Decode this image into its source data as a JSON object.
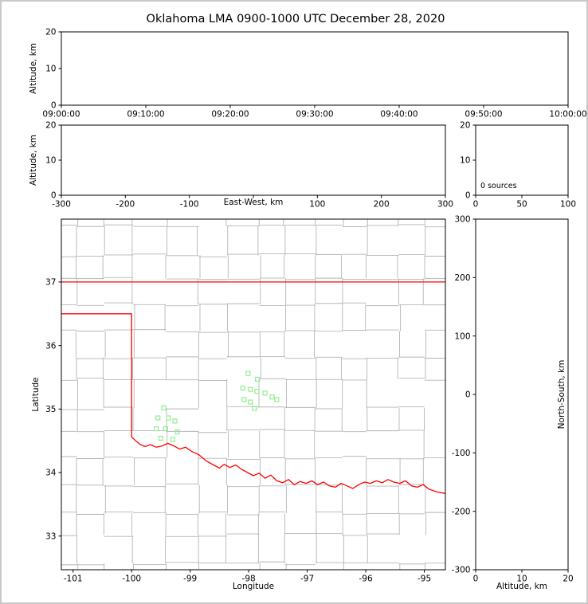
{
  "figure": {
    "title": "Oklahoma LMA 0900-1000 UTC December 28, 2020",
    "background_color": "#ffffff",
    "frame_border_color": "#c9c9c9",
    "axis_color": "#000000"
  },
  "chart_data": [
    {
      "id": "time_height",
      "type": "scatter",
      "description": "Time vs altitude panel (no sources plotted)",
      "xlabel": "",
      "ylabel": "Altitude, km",
      "xlim": [
        0,
        6
      ],
      "xticks": [
        0,
        1,
        2,
        3,
        4,
        5,
        6
      ],
      "xtick_labels": [
        "09:00:00",
        "09:10:00",
        "09:20:00",
        "09:30:00",
        "09:40:00",
        "09:50:00",
        "10:00:00"
      ],
      "ylim": [
        0,
        20
      ],
      "yticks": [
        0,
        10,
        20
      ],
      "series": []
    },
    {
      "id": "ew_altitude",
      "type": "scatter",
      "description": "East-West distance vs altitude panel (no sources plotted)",
      "xlabel": "East-West, km",
      "ylabel": "Altitude, km",
      "xlim": [
        -300,
        300
      ],
      "xticks": [
        -300,
        -200,
        -100,
        0,
        100,
        200,
        300
      ],
      "xtick_labels": [
        "-300",
        "-200",
        "-100",
        "",
        "100",
        "200",
        "300"
      ],
      "ylim": [
        0,
        20
      ],
      "yticks": [
        0,
        10,
        20
      ],
      "series": []
    },
    {
      "id": "altitude_hist",
      "type": "scatter",
      "description": "Source count vs altitude panel (no sources plotted)",
      "xlabel": "",
      "ylabel": "",
      "xlim": [
        0,
        100
      ],
      "xticks": [
        0,
        50,
        100
      ],
      "ylim": [
        0,
        20
      ],
      "yticks": [
        0,
        10,
        20
      ],
      "annotation": "0 sources",
      "series": []
    },
    {
      "id": "plan_view",
      "type": "map",
      "description": "Plan view map of Oklahoma with county lines, state border and LMA station markers",
      "xlabel": "Longitude",
      "ylabel": "Latitude",
      "xlim": [
        -101.2,
        -94.64
      ],
      "xticks": [
        -101,
        -100,
        -99,
        -98,
        -97,
        -96,
        -95
      ],
      "ylim": [
        32.47,
        37.99
      ],
      "yticks": [
        37,
        36,
        35,
        34,
        33
      ],
      "county_line_color": "#b5b5b5",
      "state_border_color": "#ff0000",
      "station_marker_color": "#90ee90",
      "state_boundary": [
        [
          [
            -101.2,
            37.0
          ],
          [
            -94.64,
            37.0
          ]
        ],
        [
          [
            -101.2,
            36.5
          ],
          [
            -100.0,
            36.5
          ],
          [
            -100.0,
            34.56
          ],
          [
            -99.93,
            34.5
          ],
          [
            -99.85,
            34.44
          ],
          [
            -99.77,
            34.41
          ],
          [
            -99.68,
            34.44
          ],
          [
            -99.58,
            34.4
          ],
          [
            -99.48,
            34.42
          ],
          [
            -99.38,
            34.46
          ],
          [
            -99.28,
            34.42
          ],
          [
            -99.18,
            34.37
          ],
          [
            -99.08,
            34.4
          ],
          [
            -98.97,
            34.33
          ],
          [
            -98.85,
            34.28
          ],
          [
            -98.72,
            34.18
          ],
          [
            -98.6,
            34.12
          ],
          [
            -98.5,
            34.07
          ],
          [
            -98.42,
            34.13
          ],
          [
            -98.32,
            34.08
          ],
          [
            -98.22,
            34.12
          ],
          [
            -98.12,
            34.05
          ],
          [
            -98.02,
            34.0
          ],
          [
            -97.92,
            33.95
          ],
          [
            -97.82,
            33.99
          ],
          [
            -97.72,
            33.91
          ],
          [
            -97.62,
            33.96
          ],
          [
            -97.52,
            33.87
          ],
          [
            -97.42,
            33.84
          ],
          [
            -97.32,
            33.89
          ],
          [
            -97.22,
            33.81
          ],
          [
            -97.12,
            33.86
          ],
          [
            -97.02,
            33.83
          ],
          [
            -96.92,
            33.87
          ],
          [
            -96.82,
            33.81
          ],
          [
            -96.72,
            33.85
          ],
          [
            -96.62,
            33.79
          ],
          [
            -96.52,
            33.77
          ],
          [
            -96.42,
            33.83
          ],
          [
            -96.32,
            33.79
          ],
          [
            -96.22,
            33.75
          ],
          [
            -96.12,
            33.81
          ],
          [
            -96.02,
            33.85
          ],
          [
            -95.92,
            33.83
          ],
          [
            -95.82,
            33.87
          ],
          [
            -95.72,
            33.84
          ],
          [
            -95.62,
            33.89
          ],
          [
            -95.52,
            33.85
          ],
          [
            -95.42,
            33.83
          ],
          [
            -95.32,
            33.87
          ],
          [
            -95.22,
            33.79
          ],
          [
            -95.12,
            33.77
          ],
          [
            -95.02,
            33.81
          ],
          [
            -94.92,
            33.74
          ],
          [
            -94.8,
            33.7
          ],
          [
            -94.64,
            33.67
          ]
        ]
      ],
      "stations": [
        [
          -99.45,
          35.02
        ],
        [
          -99.55,
          34.86
        ],
        [
          -99.37,
          34.86
        ],
        [
          -99.26,
          34.81
        ],
        [
          -99.58,
          34.69
        ],
        [
          -99.42,
          34.69
        ],
        [
          -99.5,
          34.54
        ],
        [
          -99.3,
          34.52
        ],
        [
          -99.22,
          34.64
        ],
        [
          -98.01,
          35.56
        ],
        [
          -97.85,
          35.47
        ],
        [
          -98.1,
          35.33
        ],
        [
          -97.97,
          35.31
        ],
        [
          -97.86,
          35.28
        ],
        [
          -97.72,
          35.25
        ],
        [
          -98.08,
          35.15
        ],
        [
          -97.97,
          35.11
        ],
        [
          -97.6,
          35.19
        ],
        [
          -97.52,
          35.15
        ],
        [
          -97.9,
          35.01
        ]
      ]
    },
    {
      "id": "ns_altitude",
      "type": "scatter",
      "description": "Altitude vs North-South distance panel (no sources plotted)",
      "xlabel": "Altitude, km",
      "ylabel": "North-South, km",
      "xlim": [
        0,
        20
      ],
      "xticks": [
        0,
        10,
        20
      ],
      "ylim": [
        -300,
        300
      ],
      "yticks": [
        300,
        200,
        100,
        0,
        -100,
        -200,
        -300
      ],
      "series": []
    }
  ]
}
